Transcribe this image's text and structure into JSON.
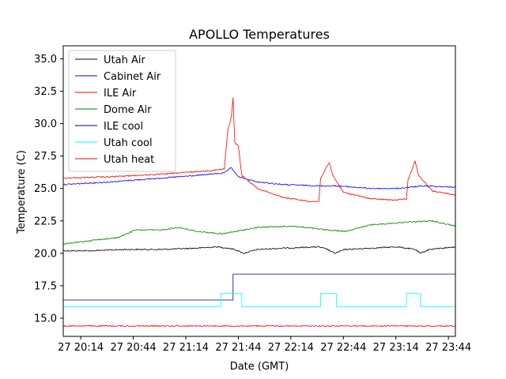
{
  "chart_data": {
    "type": "line",
    "title": "APOLLO Temperatures",
    "xlabel": "Date (GMT)",
    "ylabel": "Temperature (C)",
    "xlim": [
      "2000-01-27T20:04",
      "2000-01-27T23:48"
    ],
    "ylim": [
      13.6,
      36.0
    ],
    "x_ticks": [
      {
        "t": "2000-01-27T20:14",
        "label": "27 20:14"
      },
      {
        "t": "2000-01-27T20:44",
        "label": "27 20:44"
      },
      {
        "t": "2000-01-27T21:14",
        "label": "27 21:14"
      },
      {
        "t": "2000-01-27T21:44",
        "label": "27 21:44"
      },
      {
        "t": "2000-01-27T22:14",
        "label": "27 22:14"
      },
      {
        "t": "2000-01-27T22:44",
        "label": "27 22:44"
      },
      {
        "t": "2000-01-27T23:14",
        "label": "27 23:14"
      },
      {
        "t": "2000-01-27T23:44",
        "label": "27 23:44"
      }
    ],
    "y_ticks": [
      "15.0",
      "17.5",
      "20.0",
      "22.5",
      "25.0",
      "27.5",
      "30.0",
      "32.5",
      "35.0"
    ],
    "legend": "upper-left",
    "series": [
      {
        "name": "Utah Air",
        "color": "#000000",
        "points": [
          [
            "2000-01-27T20:04",
            20.2
          ],
          [
            "2000-01-27T20:20",
            20.2
          ],
          [
            "2000-01-27T20:40",
            20.3
          ],
          [
            "2000-01-27T21:00",
            20.3
          ],
          [
            "2000-01-27T21:20",
            20.4
          ],
          [
            "2000-01-27T21:32",
            20.5
          ],
          [
            "2000-01-27T21:38",
            20.4
          ],
          [
            "2000-01-27T21:42",
            20.3
          ],
          [
            "2000-01-27T21:47",
            20.0
          ],
          [
            "2000-01-27T21:55",
            20.3
          ],
          [
            "2000-01-27T22:10",
            20.4
          ],
          [
            "2000-01-27T22:30",
            20.5
          ],
          [
            "2000-01-27T22:35",
            20.3
          ],
          [
            "2000-01-27T22:39",
            20.0
          ],
          [
            "2000-01-27T22:45",
            20.3
          ],
          [
            "2000-01-27T23:00",
            20.4
          ],
          [
            "2000-01-27T23:15",
            20.5
          ],
          [
            "2000-01-27T23:25",
            20.3
          ],
          [
            "2000-01-27T23:28",
            20.0
          ],
          [
            "2000-01-27T23:33",
            20.3
          ],
          [
            "2000-01-27T23:48",
            20.5
          ]
        ]
      },
      {
        "name": "Cabinet Air",
        "color": "#0000ff",
        "points": [
          [
            "2000-01-27T20:04",
            25.3
          ],
          [
            "2000-01-27T20:30",
            25.5
          ],
          [
            "2000-01-27T21:00",
            25.8
          ],
          [
            "2000-01-27T21:20",
            26.0
          ],
          [
            "2000-01-27T21:36",
            26.2
          ],
          [
            "2000-01-27T21:40",
            26.6
          ],
          [
            "2000-01-27T21:44",
            25.9
          ],
          [
            "2000-01-27T21:55",
            25.5
          ],
          [
            "2000-01-27T22:10",
            25.3
          ],
          [
            "2000-01-27T22:30",
            25.2
          ],
          [
            "2000-01-27T22:40",
            25.2
          ],
          [
            "2000-01-27T23:00",
            25.0
          ],
          [
            "2000-01-27T23:15",
            25.0
          ],
          [
            "2000-01-27T23:30",
            25.2
          ],
          [
            "2000-01-27T23:48",
            25.1
          ]
        ]
      },
      {
        "name": "ILE Air",
        "color": "#ff0000",
        "points": [
          [
            "2000-01-27T20:04",
            25.8
          ],
          [
            "2000-01-27T20:30",
            25.9
          ],
          [
            "2000-01-27T21:00",
            26.1
          ],
          [
            "2000-01-27T21:30",
            26.4
          ],
          [
            "2000-01-27T21:36",
            26.5
          ],
          [
            "2000-01-27T21:38",
            29.5
          ],
          [
            "2000-01-27T21:40",
            30.5
          ],
          [
            "2000-01-27T21:41",
            32.0
          ],
          [
            "2000-01-27T21:42",
            28.5
          ],
          [
            "2000-01-27T21:44",
            28.3
          ],
          [
            "2000-01-27T21:46",
            26.0
          ],
          [
            "2000-01-27T21:55",
            25.0
          ],
          [
            "2000-01-27T22:10",
            24.3
          ],
          [
            "2000-01-27T22:25",
            24.0
          ],
          [
            "2000-01-27T22:30",
            24.0
          ],
          [
            "2000-01-27T22:31",
            25.8
          ],
          [
            "2000-01-27T22:36",
            27.0
          ],
          [
            "2000-01-27T22:38",
            26.0
          ],
          [
            "2000-01-27T22:44",
            24.7
          ],
          [
            "2000-01-27T23:00",
            24.2
          ],
          [
            "2000-01-27T23:14",
            24.1
          ],
          [
            "2000-01-27T23:20",
            24.2
          ],
          [
            "2000-01-27T23:21",
            25.7
          ],
          [
            "2000-01-27T23:25",
            27.1
          ],
          [
            "2000-01-27T23:27",
            26.0
          ],
          [
            "2000-01-27T23:35",
            24.8
          ],
          [
            "2000-01-27T23:48",
            24.5
          ]
        ]
      },
      {
        "name": "Dome Air",
        "color": "#008000",
        "points": [
          [
            "2000-01-27T20:04",
            20.7
          ],
          [
            "2000-01-27T20:20",
            21.0
          ],
          [
            "2000-01-27T20:35",
            21.2
          ],
          [
            "2000-01-27T20:45",
            21.8
          ],
          [
            "2000-01-27T21:00",
            21.8
          ],
          [
            "2000-01-27T21:10",
            22.0
          ],
          [
            "2000-01-27T21:20",
            21.7
          ],
          [
            "2000-01-27T21:35",
            21.5
          ],
          [
            "2000-01-27T21:55",
            22.0
          ],
          [
            "2000-01-27T22:15",
            22.1
          ],
          [
            "2000-01-27T22:35",
            21.8
          ],
          [
            "2000-01-27T22:45",
            21.7
          ],
          [
            "2000-01-27T23:00",
            22.2
          ],
          [
            "2000-01-27T23:20",
            22.4
          ],
          [
            "2000-01-27T23:35",
            22.5
          ],
          [
            "2000-01-27T23:48",
            22.1
          ]
        ]
      },
      {
        "name": "ILE cool",
        "color": "#000080",
        "points": [
          [
            "2000-01-27T20:04",
            16.4
          ],
          [
            "2000-01-27T21:41",
            16.4
          ],
          [
            "2000-01-27T21:41",
            18.4
          ],
          [
            "2000-01-27T23:48",
            18.4
          ]
        ]
      },
      {
        "name": "Utah cool",
        "color": "#00ffff",
        "points": [
          [
            "2000-01-27T20:04",
            15.9
          ],
          [
            "2000-01-27T21:34",
            15.9
          ],
          [
            "2000-01-27T21:34",
            16.9
          ],
          [
            "2000-01-27T21:46",
            16.9
          ],
          [
            "2000-01-27T21:46",
            15.9
          ],
          [
            "2000-01-27T22:31",
            15.9
          ],
          [
            "2000-01-27T22:31",
            16.9
          ],
          [
            "2000-01-27T22:40",
            16.9
          ],
          [
            "2000-01-27T22:40",
            15.9
          ],
          [
            "2000-01-27T23:20",
            15.9
          ],
          [
            "2000-01-27T23:20",
            16.9
          ],
          [
            "2000-01-27T23:28",
            16.9
          ],
          [
            "2000-01-27T23:28",
            15.9
          ],
          [
            "2000-01-27T23:48",
            15.9
          ]
        ]
      },
      {
        "name": "Utah heat",
        "color": "#ff0000",
        "points": [
          [
            "2000-01-27T20:04",
            14.4
          ],
          [
            "2000-01-27T23:48",
            14.4
          ]
        ]
      }
    ]
  }
}
